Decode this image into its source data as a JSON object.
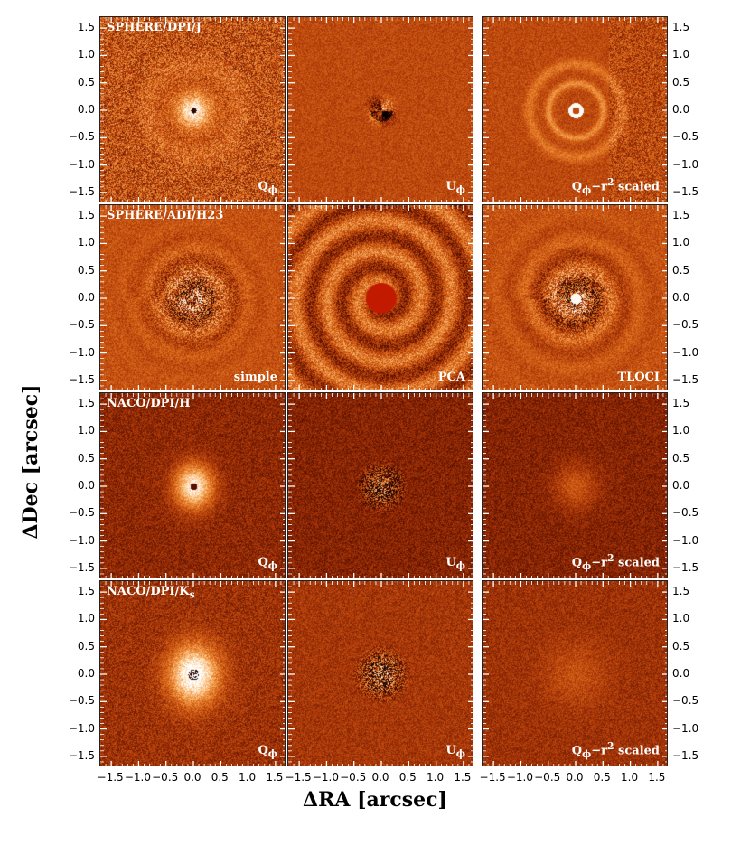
{
  "figure": {
    "xlabel": "ΔRA [arcsec]",
    "ylabel": "ΔDec [arcsec]",
    "ytick_labels": [
      "1.5",
      "1.0",
      "0.5",
      "0.0",
      "−0.5",
      "−1.0",
      "−1.5"
    ],
    "xtick_labels": [
      "−1.5",
      "−1.0",
      "−0.5",
      "0.0",
      "0.5",
      "1.0",
      "1.5"
    ],
    "colormap": [
      "#000000",
      "#5a0f00",
      "#b13b09",
      "#e27520",
      "#fbbe7a",
      "#ffffff"
    ],
    "rows": [
      {
        "title": "SPHERE/DPI/J",
        "panels": [
          {
            "label": "Q",
            "sub": "ϕ",
            "sup": "",
            "tail": "",
            "kind": "disk_qphi"
          },
          {
            "label": "U",
            "sub": "ϕ",
            "sup": "",
            "tail": "",
            "kind": "uphi_sphere"
          },
          {
            "label": "Q",
            "sub": "ϕ",
            "sup": "2",
            "tail": "−r",
            "tail2": " scaled",
            "kind": "rings"
          }
        ]
      },
      {
        "title": "SPHERE/ADI/H23",
        "panels": [
          {
            "label": "simple",
            "sub": "",
            "sup": "",
            "tail": "",
            "kind": "adi_simple"
          },
          {
            "label": "PCA",
            "sub": "",
            "sup": "",
            "tail": "",
            "kind": "adi_pca"
          },
          {
            "label": "TLOCI",
            "sub": "",
            "sup": "",
            "tail": "",
            "kind": "adi_tloci"
          }
        ]
      },
      {
        "title": "NACO/DPI/H",
        "panels": [
          {
            "label": "Q",
            "sub": "ϕ",
            "sup": "",
            "tail": "",
            "kind": "naco_q"
          },
          {
            "label": "U",
            "sub": "ϕ",
            "sup": "",
            "tail": "",
            "kind": "naco_u"
          },
          {
            "label": "Q",
            "sub": "ϕ",
            "sup": "2",
            "tail": "−r",
            "tail2": " scaled",
            "kind": "naco_r2"
          }
        ]
      },
      {
        "title": "NACO/DPI/K",
        "title_sub": "s",
        "panels": [
          {
            "label": "Q",
            "sub": "ϕ",
            "sup": "",
            "tail": "",
            "kind": "naco_qk"
          },
          {
            "label": "U",
            "sub": "ϕ",
            "sup": "",
            "tail": "",
            "kind": "naco_uk"
          },
          {
            "label": "Q",
            "sub": "ϕ",
            "sup": "2",
            "tail": "−r",
            "tail2": " scaled",
            "kind": "naco_r2k"
          }
        ]
      }
    ]
  }
}
